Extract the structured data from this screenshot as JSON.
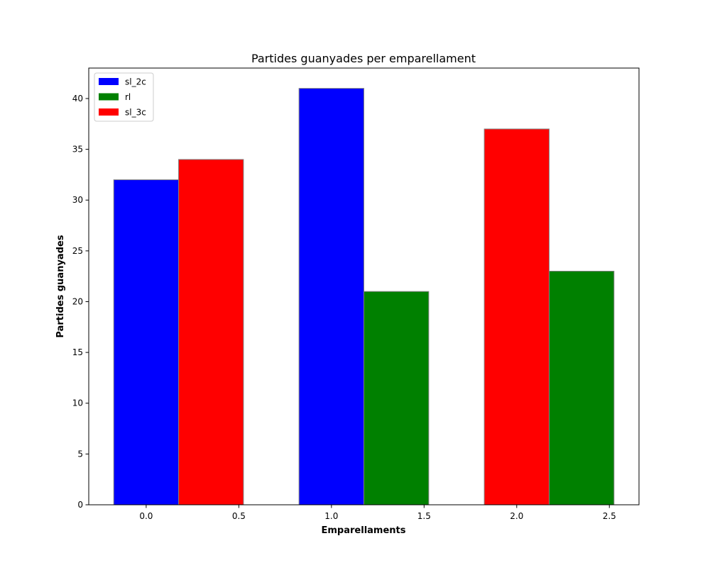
{
  "chart_data": {
    "type": "bar",
    "title": "Partides guanyades per emparellament",
    "xlabel": "Emparellaments",
    "ylabel": "Partides guanyades",
    "xlim": [
      -0.31,
      2.66
    ],
    "ylim": [
      0,
      43
    ],
    "bar_width": 0.35,
    "x_ticks": [
      0.0,
      0.5,
      1.0,
      1.5,
      2.0,
      2.5
    ],
    "x_tick_labels": [
      "0.0",
      "0.5",
      "1.0",
      "1.5",
      "2.0",
      "2.5"
    ],
    "y_ticks": [
      0,
      5,
      10,
      15,
      20,
      25,
      30,
      35,
      40
    ],
    "y_tick_labels": [
      "0",
      "5",
      "10",
      "15",
      "20",
      "25",
      "30",
      "35",
      "40"
    ],
    "grid": false,
    "legend_position": "upper-left",
    "bar_edge_color": "#808080",
    "series": [
      {
        "name": "sl_2c",
        "color": "#0000ff",
        "points": [
          {
            "x": 0.0,
            "value": 32
          },
          {
            "x": 1.0,
            "value": 41
          }
        ]
      },
      {
        "name": "rl",
        "color": "#008000",
        "points": [
          {
            "x": 1.35,
            "value": 21
          },
          {
            "x": 2.35,
            "value": 23
          }
        ]
      },
      {
        "name": "sl_3c",
        "color": "#ff0000",
        "points": [
          {
            "x": 0.35,
            "value": 34
          },
          {
            "x": 2.0,
            "value": 37
          }
        ]
      }
    ]
  }
}
